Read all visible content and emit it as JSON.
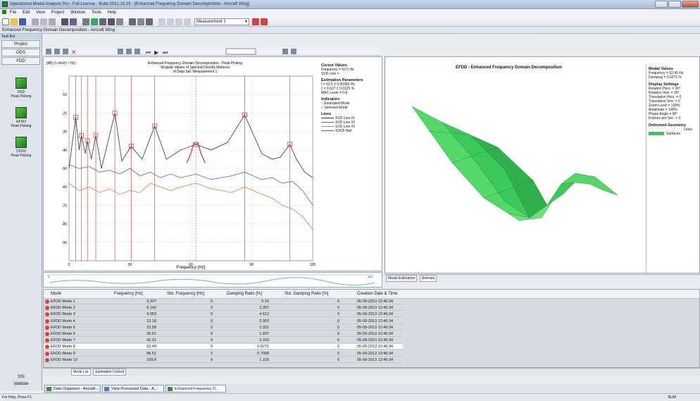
{
  "window": {
    "title": "Operational Modal Analysis Pro - Full License - Build 2012.10.23 - [Enhanced Frequency Domain Decomposition - Aircraft Wing]"
  },
  "menu": [
    "File",
    "Edit",
    "View",
    "Project",
    "Window",
    "Tools",
    "Help"
  ],
  "toolbar": {
    "measurement_selected": "Measurement 1"
  },
  "breadcrumb": "Enhanced Frequency Domain Decomposition - Aircraft Wing",
  "taskbar": {
    "header": "Task Bar",
    "tabs": [
      "Project",
      "ODS",
      "FDD"
    ],
    "tools": [
      {
        "name": "FDD",
        "sub": "Peak Picking"
      },
      {
        "name": "EFDD",
        "sub": "Peak Picking"
      },
      {
        "name": "CFDD",
        "sub": "Peak Picking"
      }
    ],
    "bottom": [
      "SSI",
      "Validate"
    ]
  },
  "chart": {
    "ylabel": "[dB] (1 m/s²)² / Hz]",
    "title_lines": [
      "Enhanced Frequency Domain Decomposition - Peak Picking",
      "Singular Values of Spectral Density Matrices",
      "of Data Set: Measurement 1"
    ],
    "xlabel": "Frequency [Hz]",
    "cursor": {
      "head": "Cursor Values",
      "freq": "Frequency = 62.5 Hz",
      "svd": "SVD Line ="
    },
    "estimation": {
      "head": "Estimation Parameters",
      "f": "f = 62.5 ± 0.00366 Hz",
      "z": "ζ = 0.627 ± 0.0125 %",
      "mac": "MAC Level = 0.8"
    },
    "indicators": {
      "head": "Indicators",
      "estimated": "Estimated Mode",
      "selected": "Selected Mode"
    },
    "lines_head": "Lines",
    "lines": [
      {
        "label": "SVD Line #1",
        "color": "#333333"
      },
      {
        "label": "SVD Line #2",
        "color": "#5a5fc8"
      },
      {
        "label": "SVD Line #3",
        "color": "#e0784a"
      },
      {
        "label": "SDOF Bell",
        "color": "#d83030"
      }
    ],
    "overview_end": "120"
  },
  "chart_data": {
    "type": "line",
    "xlim": [
      0,
      120
    ],
    "ylim": [
      -100,
      0
    ],
    "xticks": [
      "0",
      "30",
      "60",
      "90",
      "120"
    ],
    "yticks": [
      "-10",
      "-20",
      "-30",
      "-40",
      "-50",
      "-60",
      "-70",
      "-80",
      "-90"
    ],
    "mode_frequencies": [
      3.327,
      6.142,
      9.053,
      13.18,
      22.58,
      30.61,
      42.21,
      62.49,
      86.51,
      108.8
    ],
    "series": [
      {
        "name": "SVD Line #1",
        "color": "#333333",
        "x": [
          0,
          3.3,
          5,
          6.1,
          8,
          9.05,
          11,
          13.2,
          16,
          22.6,
          26,
          30.6,
          36,
          42.2,
          48,
          55,
          62.5,
          70,
          78,
          86.5,
          95,
          100,
          104,
          108.8,
          112,
          116,
          120
        ],
        "y": [
          -50,
          -22,
          -40,
          -32,
          -42,
          -35,
          -45,
          -32,
          -50,
          -20,
          -46,
          -38,
          -45,
          -27,
          -45,
          -40,
          -37,
          -40,
          -36,
          -21,
          -42,
          -45,
          -44,
          -37,
          -45,
          -52,
          -55
        ]
      },
      {
        "name": "SVD Line #2",
        "color": "#5a5fc8",
        "x": [
          0,
          5,
          10,
          15,
          20,
          25,
          30,
          35,
          40,
          45,
          50,
          55,
          62.5,
          70,
          80,
          86.5,
          95,
          100,
          105,
          110,
          115,
          120
        ],
        "y": [
          -48,
          -50,
          -49,
          -52,
          -51,
          -53,
          -50,
          -54,
          -52,
          -55,
          -53,
          -55,
          -53,
          -56,
          -54,
          -52,
          -56,
          -55,
          -58,
          -57,
          -62,
          -70
        ]
      },
      {
        "name": "SVD Line #3",
        "color": "#e0784a",
        "x": [
          0,
          5,
          10,
          15,
          20,
          25,
          30,
          35,
          40,
          45,
          50,
          55,
          62.5,
          70,
          80,
          86.5,
          95,
          100,
          105,
          110,
          115,
          120
        ],
        "y": [
          -58,
          -62,
          -60,
          -63,
          -61,
          -64,
          -62,
          -63,
          -58,
          -60,
          -62,
          -60,
          -58,
          -61,
          -63,
          -60,
          -64,
          -66,
          -70,
          -72,
          -76,
          -83
        ]
      },
      {
        "name": "SDOF Bell",
        "color": "#d83030",
        "x": [
          58,
          60,
          61.5,
          62.5,
          63.5,
          65,
          67
        ],
        "y": [
          -47,
          -42,
          -36,
          -37,
          -36,
          -42,
          -47
        ]
      }
    ]
  },
  "efdd": {
    "title": "EFDD - Enhanced Frequency Domain Decomposition",
    "modal": {
      "head": "Modal Values",
      "freq": "Frequency = 62.49 Hz",
      "damp": "Damping = 0.6271 %"
    },
    "display": {
      "head": "Display Settings",
      "items": [
        "Rotation Horz. = 26°",
        "Rotation Vert. = 30°",
        "Translation Horz. = 0",
        "Translation Vert. = 0",
        "Zoom Level = 130%",
        "Amplitude = 100%",
        "Phase Angle = 90°",
        "Frames per Sec. = 0"
      ]
    },
    "deformed": {
      "head": "Deformed Geometry",
      "lines": "Lines",
      "surfaces": "Surfaces"
    },
    "tabs": [
      "Modal Estimation",
      "Animate"
    ],
    "surface_color": "#3cc85a"
  },
  "table": {
    "columns": [
      "Mode",
      "Frequency [Hz]",
      "Std. Frequency [Hz]",
      "Damping Ratio [%]",
      "Std. Damping Ratio [%]",
      "Creation Date & Time"
    ],
    "rows": [
      [
        "EFDD Mode 1",
        "3.327",
        "0",
        "5.15",
        "0",
        "05-09-2013 12:46:34"
      ],
      [
        "EFDD Mode 2",
        "6.142",
        "0",
        "3.267",
        "0",
        "05-09-2013 12:46:34"
      ],
      [
        "EFDD Mode 3",
        "9.053",
        "0",
        "4.612",
        "0",
        "05-09-2013 12:46:34"
      ],
      [
        "EFDD Mode 4",
        "13.18",
        "0",
        "2.053",
        "0",
        "05-09-2013 12:46:34"
      ],
      [
        "EFDD Mode 5",
        "22.58",
        "0",
        "2.321",
        "0",
        "05-09-2013 12:46:34"
      ],
      [
        "EFDD Mode 6",
        "30.61",
        "0",
        "1.937",
        "0",
        "05-09-2013 12:46:34"
      ],
      [
        "EFDD Mode 7",
        "42.21",
        "0",
        "2.316",
        "0",
        "05-09-2013 12:46:34"
      ],
      [
        "EFDD Mode 8",
        "62.49",
        "0",
        "0.6271",
        "0",
        "05-09-2013 12:46:34"
      ],
      [
        "EFDD Mode 9",
        "86.51",
        "0",
        "0.7008",
        "0",
        "05-09-2013 12:46:34"
      ],
      [
        "EFDD Mode 10",
        "108.8",
        "0",
        "1.103",
        "0",
        "05-09-2013 12:46:34"
      ]
    ],
    "selected_row": 7,
    "tabs": [
      "Mode List",
      "Estimation Control"
    ]
  },
  "bottom_tabs": [
    "Data Organizer - Aircraft ...",
    "View Processed Data - A...",
    "Enhanced Frequency D..."
  ],
  "status": {
    "left": "For Help, Press F1",
    "right": "NUM"
  }
}
